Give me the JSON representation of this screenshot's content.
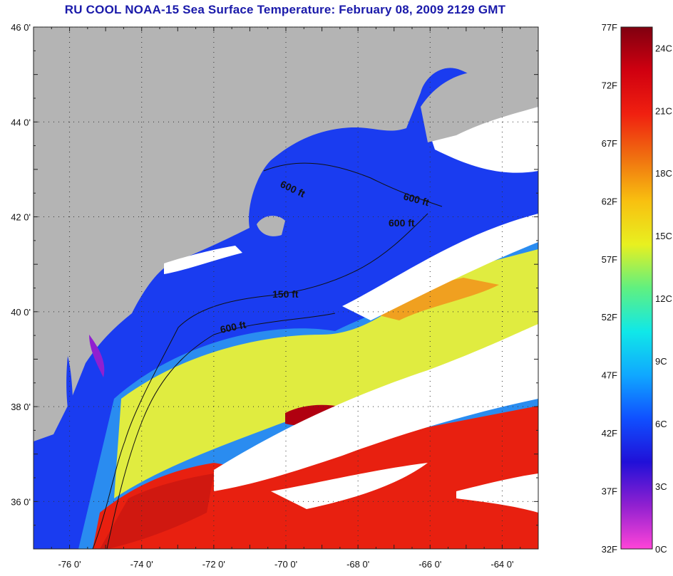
{
  "title": "RU COOL  NOAA-15  Sea Surface Temperature:  February 08, 2009 2129 GMT",
  "map": {
    "lat_labels": [
      "46 0'",
      "44 0'",
      "42 0'",
      "40 0'",
      "38 0'",
      "36 0'"
    ],
    "lon_labels": [
      "-76 0'",
      "-74 0'",
      "-72 0'",
      "-70 0'",
      "-68 0'",
      "-66 0'",
      "-64 0'"
    ],
    "lat_range": [
      35,
      46
    ],
    "lon_range": [
      -77,
      -63
    ],
    "contour_labels": [
      "600 ft",
      "600 ft",
      "600 ft",
      "150 ft",
      "600 ft"
    ],
    "colors": {
      "land": "#b4b4b4",
      "cloud": "#ffffff",
      "cold": "#1a3cf0",
      "cool": "#2a8cf0",
      "mid": "#30d0e0",
      "warm_yellow": "#e8f040",
      "orange": "#f0a020",
      "hot": "#e82010",
      "hottest": "#b00010"
    }
  },
  "colorbar": {
    "fahrenheit": [
      "77F",
      "72F",
      "67F",
      "62F",
      "57F",
      "52F",
      "47F",
      "42F",
      "37F",
      "32F"
    ],
    "celsius": [
      "24C",
      "21C",
      "18C",
      "15C",
      "12C",
      "9C",
      "6C",
      "3C",
      "0C"
    ],
    "stops": [
      "#ff44d8",
      "#9020d0",
      "#2010d8",
      "#1050ff",
      "#10a8ff",
      "#10e8e8",
      "#60f080",
      "#e8f020",
      "#f8c010",
      "#f07010",
      "#f02010",
      "#d00010",
      "#800010"
    ]
  }
}
